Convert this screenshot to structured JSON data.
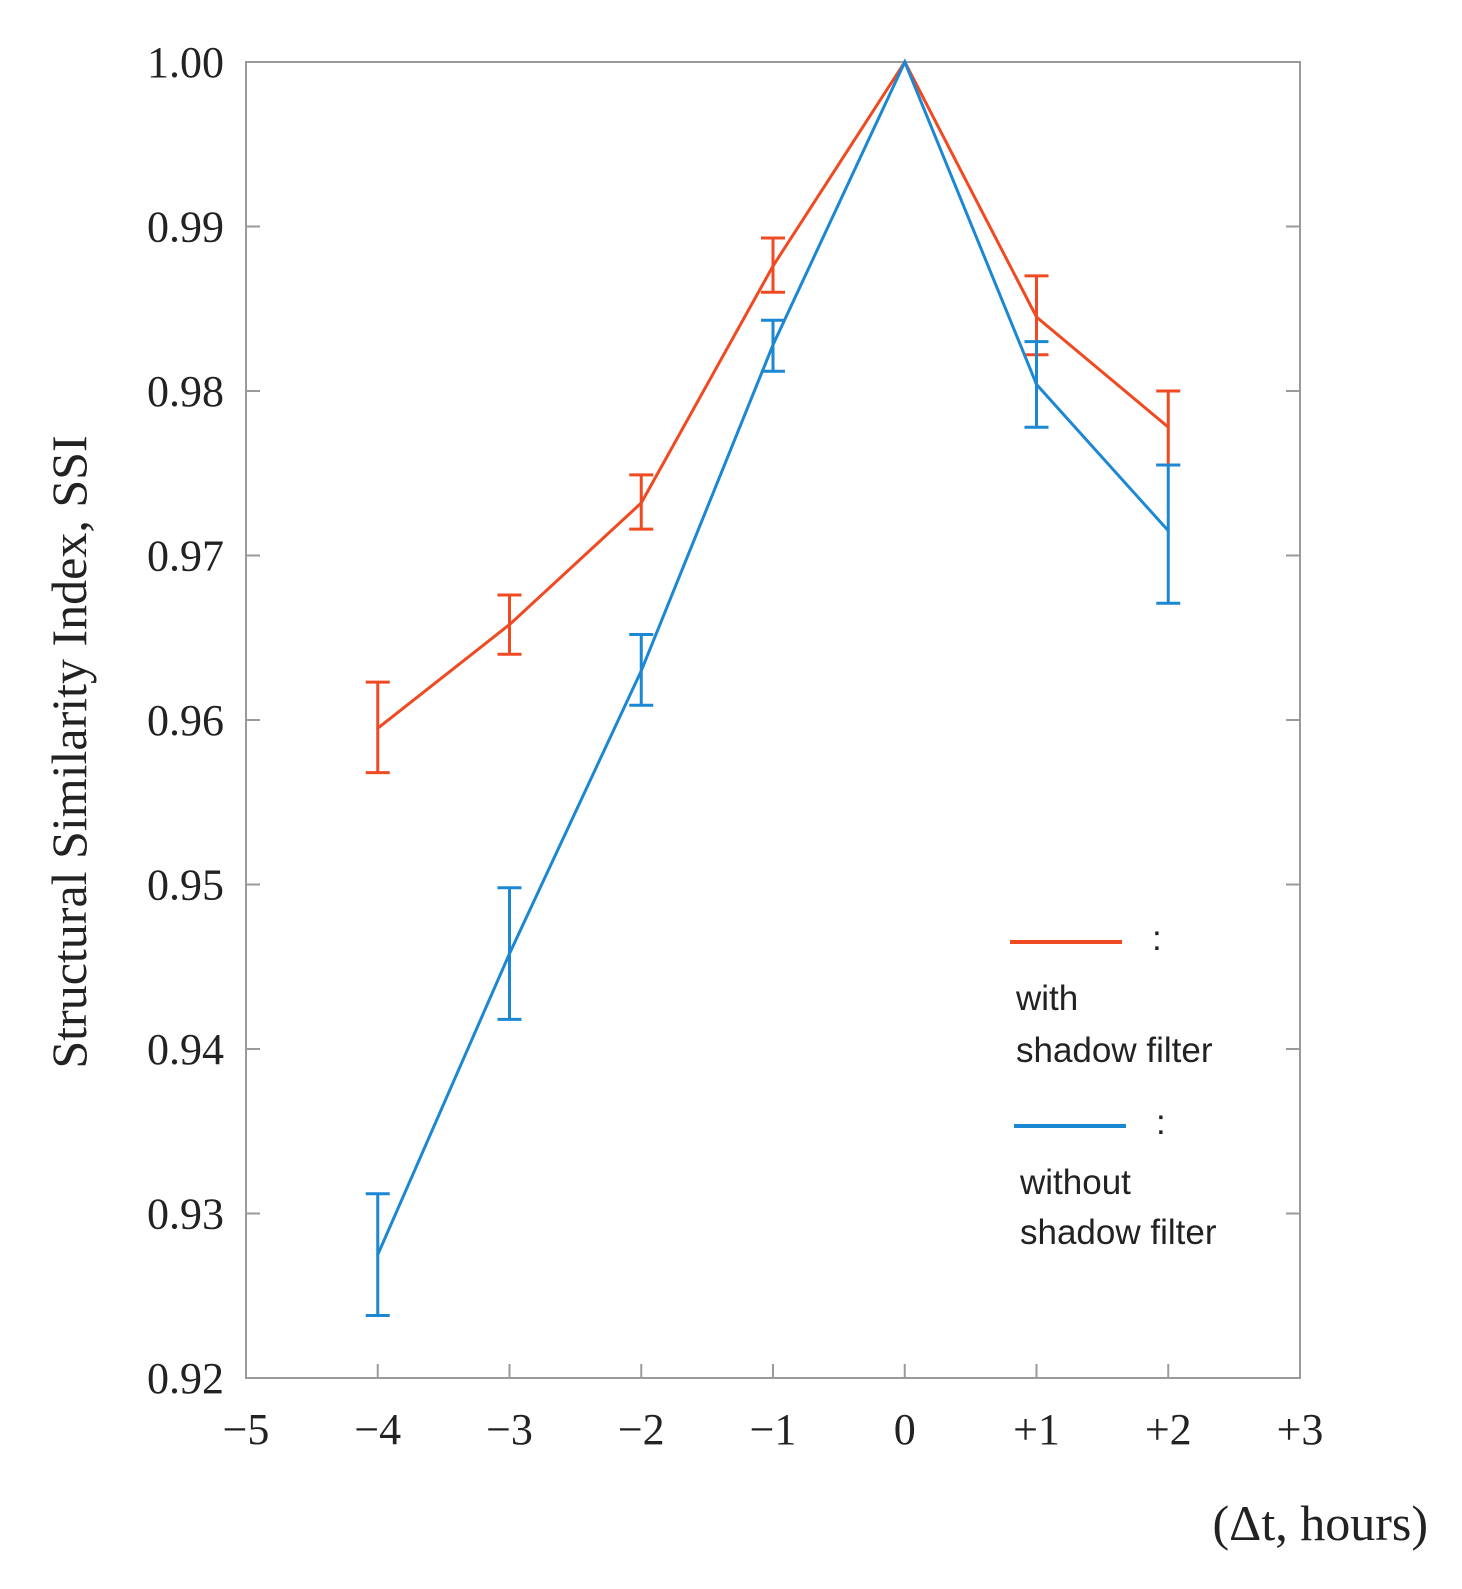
{
  "chart_data": {
    "type": "line",
    "title": "",
    "xlabel": "(Δt, hours)",
    "ylabel": "Structural Similarity Index, SSI",
    "xlim": [
      -5,
      3
    ],
    "ylim": [
      0.92,
      1.0
    ],
    "x_ticks": [
      -5,
      -4,
      -3,
      -2,
      -1,
      0,
      1,
      2,
      3
    ],
    "x_tick_labels": [
      "−5",
      "−4",
      "−3",
      "−2",
      "−1",
      "0",
      "+1",
      "+2",
      "+3"
    ],
    "y_ticks": [
      0.92,
      0.93,
      0.94,
      0.95,
      0.96,
      0.97,
      0.98,
      0.99,
      1.0
    ],
    "y_tick_labels": [
      "0.92",
      "0.93",
      "0.94",
      "0.95",
      "0.96",
      "0.97",
      "0.98",
      "0.99",
      "1.00"
    ],
    "grid": false,
    "legend_position": "bottom-right",
    "series": [
      {
        "name": "with shadow filter",
        "legend_line1": "with",
        "legend_line2": "shadow filter",
        "color": "#f04a22",
        "x": [
          -4,
          -3,
          -2,
          -1,
          0,
          1,
          2
        ],
        "y": [
          0.9595,
          0.9658,
          0.9732,
          0.9876,
          1.0,
          0.9845,
          0.9778
        ],
        "err_low": [
          0.9568,
          0.964,
          0.9716,
          0.986,
          1.0,
          0.9822,
          0.9755
        ],
        "err_high": [
          0.9623,
          0.9676,
          0.9749,
          0.9893,
          1.0,
          0.987,
          0.98
        ]
      },
      {
        "name": "without shadow filter",
        "legend_line1": "without",
        "legend_line2": "shadow filter",
        "color": "#1c87d2",
        "x": [
          -4,
          -3,
          -2,
          -1,
          0,
          1,
          2
        ],
        "y": [
          0.9275,
          0.9458,
          0.963,
          0.9828,
          1.0,
          0.9804,
          0.9715
        ],
        "err_low": [
          0.9238,
          0.9418,
          0.9609,
          0.9812,
          1.0,
          0.9778,
          0.9671
        ],
        "err_high": [
          0.9312,
          0.9498,
          0.9652,
          0.9843,
          1.0,
          0.983,
          0.9755
        ]
      }
    ]
  }
}
